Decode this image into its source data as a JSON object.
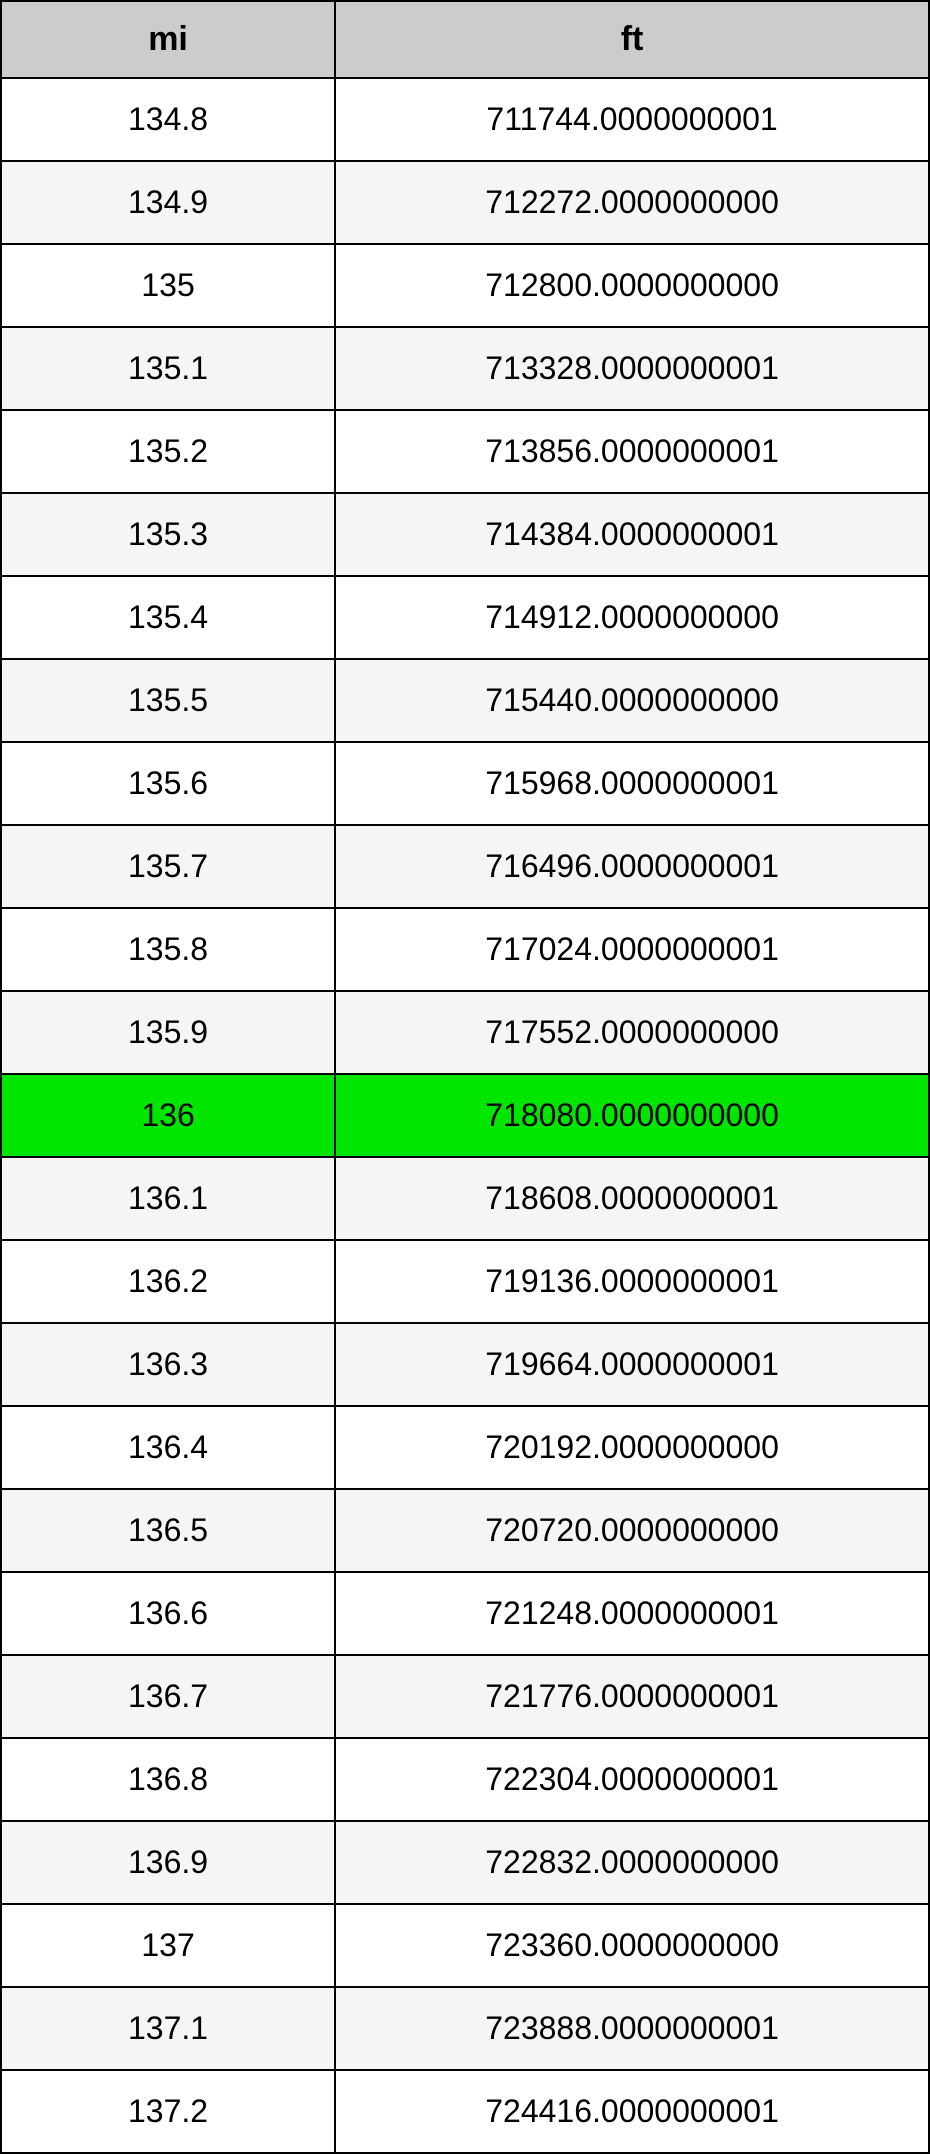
{
  "table": {
    "columns": [
      "mi",
      "ft"
    ],
    "highlight_row_index": 12,
    "header_bg": "#cccccc",
    "row_bg_odd": "#ffffff",
    "row_bg_even": "#f5f5f5",
    "highlight_bg": "#00e600",
    "border_color": "#000000",
    "text_color": "#000000",
    "header_fontsize": 34,
    "cell_fontsize": 32,
    "rows": [
      [
        "134.8",
        "711744.0000000001"
      ],
      [
        "134.9",
        "712272.0000000000"
      ],
      [
        "135",
        "712800.0000000000"
      ],
      [
        "135.1",
        "713328.0000000001"
      ],
      [
        "135.2",
        "713856.0000000001"
      ],
      [
        "135.3",
        "714384.0000000001"
      ],
      [
        "135.4",
        "714912.0000000000"
      ],
      [
        "135.5",
        "715440.0000000000"
      ],
      [
        "135.6",
        "715968.0000000001"
      ],
      [
        "135.7",
        "716496.0000000001"
      ],
      [
        "135.8",
        "717024.0000000001"
      ],
      [
        "135.9",
        "717552.0000000000"
      ],
      [
        "136",
        "718080.0000000000"
      ],
      [
        "136.1",
        "718608.0000000001"
      ],
      [
        "136.2",
        "719136.0000000001"
      ],
      [
        "136.3",
        "719664.0000000001"
      ],
      [
        "136.4",
        "720192.0000000000"
      ],
      [
        "136.5",
        "720720.0000000000"
      ],
      [
        "136.6",
        "721248.0000000001"
      ],
      [
        "136.7",
        "721776.0000000001"
      ],
      [
        "136.8",
        "722304.0000000001"
      ],
      [
        "136.9",
        "722832.0000000000"
      ],
      [
        "137",
        "723360.0000000000"
      ],
      [
        "137.1",
        "723888.0000000001"
      ],
      [
        "137.2",
        "724416.0000000001"
      ]
    ]
  }
}
